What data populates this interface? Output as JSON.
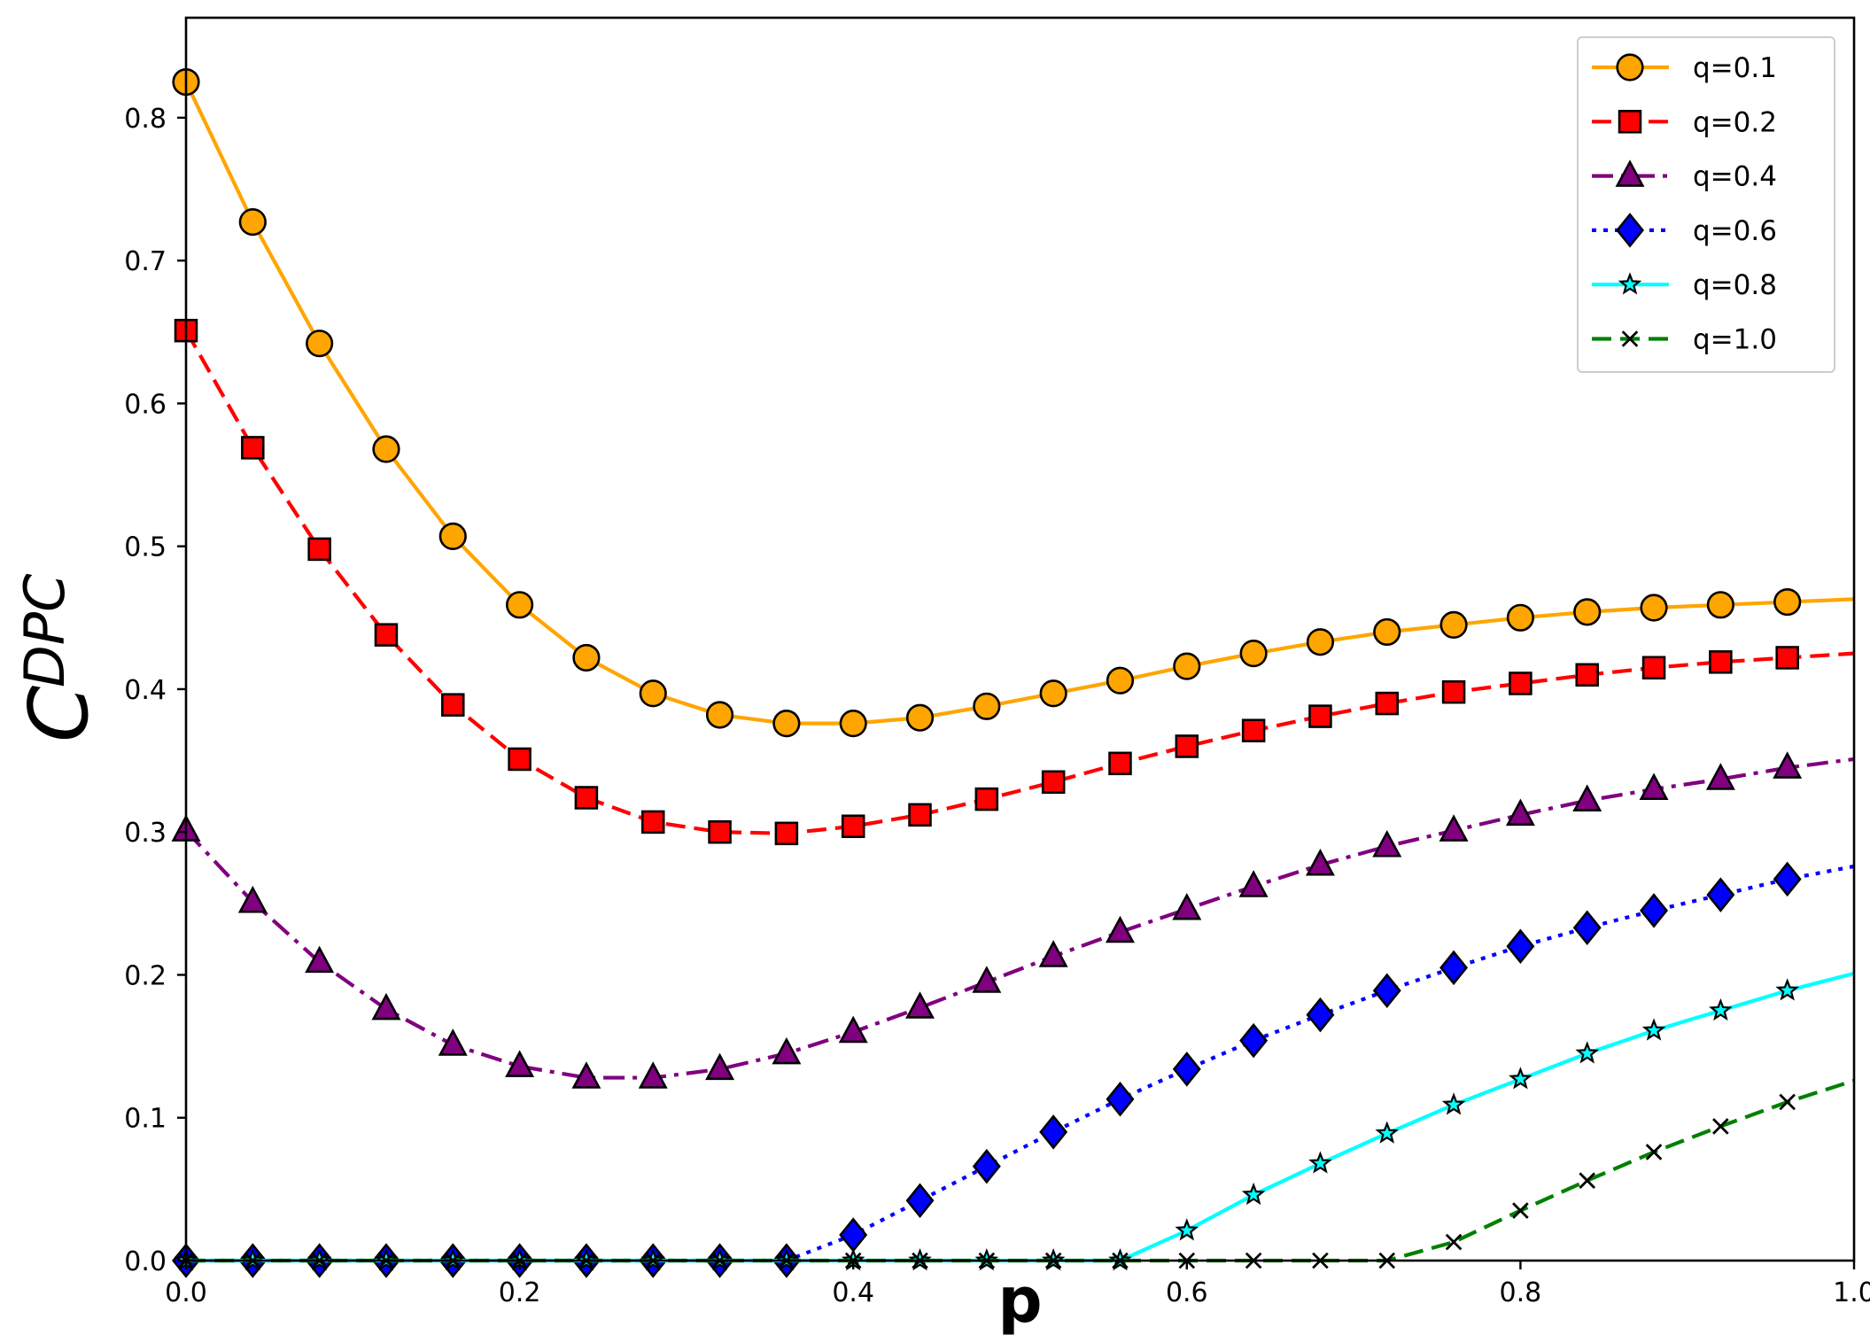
{
  "chart_data": {
    "type": "line",
    "xlabel": "p",
    "ylabel": "C",
    "ylabel_superscript": "DPC",
    "xlim": [
      0.0,
      1.0
    ],
    "ylim": [
      0.0,
      0.87
    ],
    "xticks": [
      0.0,
      0.2,
      0.4,
      0.6,
      0.8,
      1.0
    ],
    "xtick_labels": [
      "0.0",
      "0.2",
      "0.4",
      "0.6",
      "0.8",
      "1.0"
    ],
    "yticks": [
      0.0,
      0.1,
      0.2,
      0.3,
      0.4,
      0.5,
      0.6,
      0.7,
      0.8
    ],
    "ytick_labels": [
      "0.0",
      "0.1",
      "0.2",
      "0.3",
      "0.4",
      "0.5",
      "0.6",
      "0.7",
      "0.8"
    ],
    "legend_position": "top-right",
    "grid": false,
    "x": [
      0.0,
      0.04,
      0.08,
      0.12,
      0.16,
      0.2,
      0.24,
      0.28,
      0.32,
      0.36,
      0.4,
      0.44,
      0.48,
      0.52,
      0.56,
      0.6,
      0.64,
      0.68,
      0.72,
      0.76,
      0.8,
      0.84,
      0.88,
      0.92,
      0.96,
      1.0
    ],
    "marker_x": [
      0.0,
      0.04,
      0.08,
      0.12,
      0.16,
      0.2,
      0.24,
      0.28,
      0.32,
      0.36,
      0.4,
      0.44,
      0.48,
      0.52,
      0.56,
      0.6,
      0.64,
      0.68,
      0.72,
      0.76,
      0.8,
      0.84,
      0.88,
      0.92,
      0.96
    ],
    "series": [
      {
        "name": "q=0.1",
        "color": "#FFA500",
        "dash": "solid",
        "marker": "circle",
        "marker_fill": "#FFA500",
        "values": [
          0.825,
          0.727,
          0.642,
          0.568,
          0.507,
          0.459,
          0.422,
          0.397,
          0.382,
          0.376,
          0.376,
          0.38,
          0.388,
          0.397,
          0.406,
          0.416,
          0.425,
          0.433,
          0.44,
          0.445,
          0.45,
          0.454,
          0.457,
          0.459,
          0.461,
          0.463
        ]
      },
      {
        "name": "q=0.2",
        "color": "#FF0000",
        "dash": "dashed",
        "marker": "square",
        "marker_fill": "#FF0000",
        "values": [
          0.651,
          0.569,
          0.498,
          0.438,
          0.389,
          0.351,
          0.324,
          0.307,
          0.3,
          0.299,
          0.304,
          0.312,
          0.323,
          0.335,
          0.348,
          0.36,
          0.371,
          0.381,
          0.39,
          0.398,
          0.404,
          0.41,
          0.415,
          0.419,
          0.422,
          0.425
        ]
      },
      {
        "name": "q=0.4",
        "color": "#800080",
        "dash": "dashdot",
        "marker": "triangle",
        "marker_fill": "#800080",
        "values": [
          0.301,
          0.251,
          0.209,
          0.176,
          0.151,
          0.136,
          0.128,
          0.128,
          0.134,
          0.145,
          0.16,
          0.177,
          0.195,
          0.213,
          0.23,
          0.246,
          0.262,
          0.277,
          0.29,
          0.301,
          0.312,
          0.322,
          0.33,
          0.337,
          0.345,
          0.351
        ]
      },
      {
        "name": "q=0.6",
        "color": "#0000FF",
        "dash": "dotted",
        "marker": "diamond",
        "marker_fill": "#0000FF",
        "values": [
          0.0,
          0.0,
          0.0,
          0.0,
          0.0,
          0.0,
          0.0,
          0.0,
          0.0,
          0.0,
          0.018,
          0.042,
          0.066,
          0.09,
          0.113,
          0.134,
          0.154,
          0.172,
          0.189,
          0.205,
          0.22,
          0.233,
          0.245,
          0.256,
          0.267,
          0.276
        ]
      },
      {
        "name": "q=0.8",
        "color": "#00FFFF",
        "dash": "solid",
        "marker": "star",
        "marker_fill": "#00FFFF",
        "values": [
          0.0,
          0.0,
          0.0,
          0.0,
          0.0,
          0.0,
          0.0,
          0.0,
          0.0,
          0.0,
          0.0,
          0.0,
          0.0,
          0.0,
          0.0,
          0.021,
          0.046,
          0.068,
          0.089,
          0.109,
          0.127,
          0.145,
          0.161,
          0.175,
          0.189,
          0.201
        ]
      },
      {
        "name": "q=1.0",
        "color": "#008000",
        "dash": "dashed",
        "marker": "x",
        "marker_fill": "#000000",
        "values": [
          0.0,
          0.0,
          0.0,
          0.0,
          0.0,
          0.0,
          0.0,
          0.0,
          0.0,
          0.0,
          0.0,
          0.0,
          0.0,
          0.0,
          0.0,
          0.0,
          0.0,
          0.0,
          0.0,
          0.013,
          0.035,
          0.056,
          0.076,
          0.094,
          0.111,
          0.126
        ]
      }
    ]
  }
}
